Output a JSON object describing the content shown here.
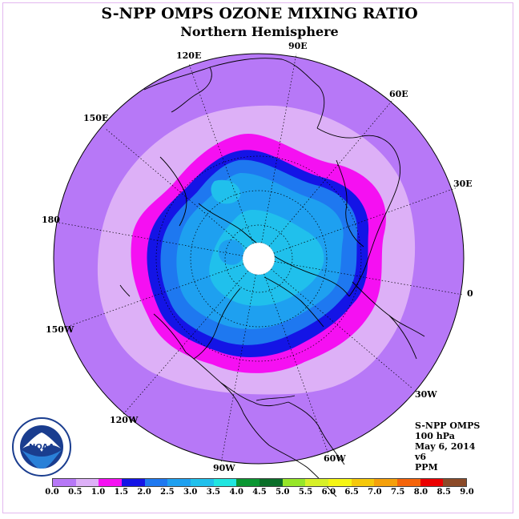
{
  "title": "S-NPP OMPS OZONE MIXING RATIO",
  "subtitle": "Northern Hemisphere",
  "longitude_labels": {
    "lon_90e": "90E",
    "lon_60e": "60E",
    "lon_30e": "30E",
    "lon_0": "0",
    "lon_30w": "30W",
    "lon_60w": "60W",
    "lon_90w": "90W",
    "lon_120w": "120W",
    "lon_150w": "150W",
    "lon_180": "180",
    "lon_150e": "150E",
    "lon_120e": "120E"
  },
  "info": {
    "instrument": "S-NPP OMPS",
    "level": "100 hPa",
    "date": "May 6, 2014",
    "version": "v6",
    "units": "PPM"
  },
  "logo_text": "NOAA",
  "colorbar": {
    "colors": [
      "#b778f7",
      "#ddb0f7",
      "#f510f2",
      "#1414e6",
      "#1e78f0",
      "#1ea0f0",
      "#20c0ec",
      "#20e6e0",
      "#0a9632",
      "#0a6e28",
      "#96e628",
      "#d7f028",
      "#f5f514",
      "#f5c80a",
      "#f5a00a",
      "#f5640a",
      "#eb0000",
      "#8b4a28"
    ],
    "tick_labels": [
      "0.0",
      "0.5",
      "1.0",
      "1.5",
      "2.0",
      "2.5",
      "3.0",
      "3.5",
      "4.0",
      "4.5",
      "5.0",
      "5.5",
      "6.0",
      "6.5",
      "7.0",
      "7.5",
      "8.0",
      "8.5",
      "9.0"
    ]
  },
  "map_colors": {
    "ocean_low": "#b778f7",
    "band_05": "#ddb0f7",
    "band_10": "#f510f2",
    "band_15": "#1414e6",
    "band_20": "#1e78f0",
    "band_25": "#1ea0f0",
    "band_30": "#20c0ec",
    "pole_gap": "#ffffff",
    "frame": "#e3b8ef"
  }
}
